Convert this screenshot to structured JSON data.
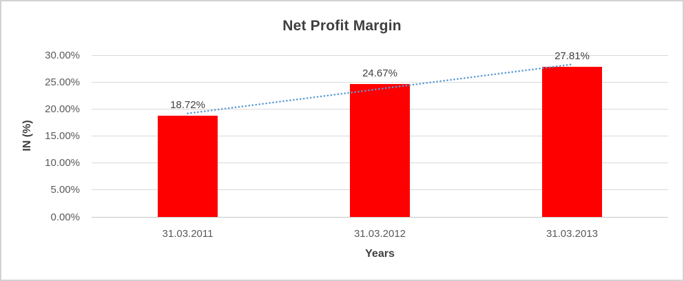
{
  "chart_data": {
    "type": "bar",
    "title": "Net Profit Margin",
    "xlabel": "Years",
    "ylabel": "IN (%)",
    "categories": [
      "31.03.2011",
      "31.03.2012",
      "31.03.2013"
    ],
    "values": [
      18.72,
      24.67,
      27.81
    ],
    "data_labels": [
      "18.72%",
      "24.67%",
      "27.81%"
    ],
    "ytick_values": [
      0,
      5,
      10,
      15,
      20,
      25,
      30
    ],
    "ytick_labels": [
      "0.00%",
      "5.00%",
      "10.00%",
      "15.00%",
      "20.00%",
      "25.00%",
      "30.00%"
    ],
    "ylim": [
      0,
      30
    ],
    "grid": true,
    "legend": "none",
    "trendline": {
      "type": "linear",
      "style": "dotted"
    },
    "colors": {
      "bar": "#ff0000",
      "trendline": "#5b9bd5",
      "gridline": "#d9d9d9",
      "axis_line": "#c9c9c9",
      "title_text": "#3f3f3f",
      "tick_text": "#595959",
      "data_label_text": "#404040",
      "chart_border": "#d2d2d2",
      "background": "#ffffff"
    }
  }
}
